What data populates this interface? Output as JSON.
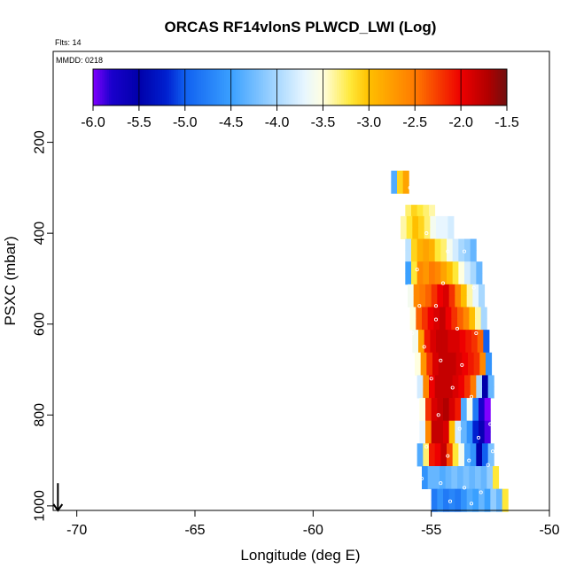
{
  "chart_data": {
    "type": "heatmap",
    "title": "ORCAS RF14vlonS PLWCD_LWI (Log)",
    "flights_label": "Flts: 14",
    "date_label": "MMDD: 0218",
    "xlabel": "Longitude (deg E)",
    "ylabel": "PSXC (mbar)",
    "xlim": [
      -71.0,
      -50.0
    ],
    "ylim": [
      1010,
      0
    ],
    "x_ticks": [
      -70,
      -65,
      -60,
      -55,
      -50
    ],
    "x_tick_labels": [
      "-70",
      "-65",
      "-60",
      "-55",
      "-50"
    ],
    "y_ticks": [
      200,
      400,
      600,
      800,
      1000
    ],
    "y_tick_labels": [
      "200",
      "400",
      "600",
      "800",
      "1000"
    ],
    "colorbar": {
      "range": [
        -6.0,
        -1.5
      ],
      "ticks": [
        -6.0,
        -5.5,
        -5.0,
        -4.5,
        -4.0,
        -3.5,
        -3.0,
        -2.5,
        -2.0,
        -1.5
      ],
      "tick_labels": [
        "-6.0",
        "-5.5",
        "-5.0",
        "-4.5",
        "-4.0",
        "-3.5",
        "-3.0",
        "-2.5",
        "-2.0",
        "-1.5"
      ],
      "stops": [
        {
          "v": -6.0,
          "color": "#8000ff"
        },
        {
          "v": -5.8,
          "color": "#1a00cc"
        },
        {
          "v": -5.5,
          "color": "#0000aa"
        },
        {
          "v": -5.2,
          "color": "#0020d0"
        },
        {
          "v": -5.0,
          "color": "#1060f0"
        },
        {
          "v": -4.5,
          "color": "#3aa0ff"
        },
        {
          "v": -4.0,
          "color": "#a8d8ff"
        },
        {
          "v": -3.7,
          "color": "#e8f6ff"
        },
        {
          "v": -3.5,
          "color": "#ffffe0"
        },
        {
          "v": -3.2,
          "color": "#ffe838"
        },
        {
          "v": -3.0,
          "color": "#ffbf00"
        },
        {
          "v": -2.5,
          "color": "#ff7a00"
        },
        {
          "v": -2.0,
          "color": "#ee0000"
        },
        {
          "v": -1.7,
          "color": "#b00000"
        },
        {
          "v": -1.5,
          "color": "#701010"
        }
      ]
    },
    "cell_width_deg": 0.25,
    "cell_height_mbar": 25,
    "profiles": [
      {
        "p": 275,
        "x0": -56.7,
        "v": [
          -4.4,
          -3.1,
          -2.8
        ]
      },
      {
        "p": 300,
        "x0": -56.7,
        "v": [
          -4.4,
          -3.1,
          -2.8
        ]
      },
      {
        "p": 350,
        "x0": -56.1,
        "v": [
          -3.3,
          -3.1,
          -3.2,
          -3.3,
          -3.4
        ]
      },
      {
        "p": 375,
        "x0": -56.3,
        "v": [
          -3.4,
          -3.2,
          -3.0,
          -3.1,
          -3.3,
          -3.6,
          -3.7,
          -3.7,
          -3.8
        ]
      },
      {
        "p": 400,
        "x0": -56.3,
        "v": [
          -3.4,
          -3.2,
          -3.0,
          -3.1,
          -3.3,
          -3.6,
          -3.7,
          -3.7,
          -3.8
        ]
      },
      {
        "p": 425,
        "x0": -56.1,
        "v": [
          -3.9,
          -3.1,
          -2.9,
          -2.8,
          -2.9,
          -3.2,
          -3.3,
          -3.6,
          -3.8,
          -4.0,
          -4.1,
          -4.3
        ]
      },
      {
        "p": 450,
        "x0": -56.1,
        "v": [
          -3.9,
          -3.1,
          -2.9,
          -2.8,
          -2.9,
          -3.2,
          -3.3,
          -3.6,
          -3.8,
          -4.0,
          -4.1,
          -4.3
        ]
      },
      {
        "p": 475,
        "x0": -56.1,
        "v": [
          -4.5,
          -3.2,
          -2.6,
          -2.7,
          -2.5,
          -2.6,
          -2.8,
          -3.0,
          -3.2,
          -3.5,
          -3.8,
          -4.0,
          -4.3
        ]
      },
      {
        "p": 500,
        "x0": -56.1,
        "v": [
          -4.5,
          -3.2,
          -2.6,
          -2.7,
          -2.5,
          -2.6,
          -2.8,
          -3.0,
          -3.2,
          -3.5,
          -3.8,
          -4.0,
          -4.3
        ]
      },
      {
        "p": 525,
        "x0": -56.0,
        "v": [
          -3.6,
          -2.6,
          -2.5,
          -2.4,
          -2.2,
          -2.0,
          -1.9,
          -2.2,
          -2.6,
          -3.0,
          -3.4,
          -3.7,
          -4.0
        ]
      },
      {
        "p": 550,
        "x0": -56.0,
        "v": [
          -3.6,
          -2.6,
          -2.5,
          -2.4,
          -2.2,
          -2.0,
          -1.9,
          -2.2,
          -2.6,
          -3.0,
          -3.4,
          -3.7,
          -4.0
        ]
      },
      {
        "p": 575,
        "x0": -55.9,
        "v": [
          -3.5,
          -2.4,
          -2.2,
          -2.0,
          -1.9,
          -1.8,
          -2.0,
          -2.2,
          -2.4,
          -2.6,
          -3.0,
          -3.4,
          -4.0
        ]
      },
      {
        "p": 600,
        "x0": -55.9,
        "v": [
          -3.5,
          -2.4,
          -2.2,
          -2.0,
          -1.9,
          -1.8,
          -2.0,
          -2.2,
          -2.4,
          -2.6,
          -3.0,
          -3.4,
          -4.0
        ]
      },
      {
        "p": 625,
        "x0": -55.8,
        "v": [
          -3.6,
          -2.8,
          -2.1,
          -1.9,
          -1.8,
          -1.8,
          -1.9,
          -1.9,
          -2.0,
          -2.1,
          -2.2,
          -2.4,
          -5.0
        ]
      },
      {
        "p": 650,
        "x0": -55.8,
        "v": [
          -3.6,
          -2.8,
          -2.1,
          -1.9,
          -1.8,
          -1.8,
          -1.9,
          -1.9,
          -2.0,
          -2.1,
          -2.2,
          -2.4,
          -5.0
        ]
      },
      {
        "p": 675,
        "x0": -55.7,
        "v": [
          -3.5,
          -2.7,
          -2.2,
          -1.9,
          -1.8,
          -1.8,
          -1.8,
          -1.9,
          -2.0,
          -2.1,
          -2.2,
          -2.6,
          -4.6
        ]
      },
      {
        "p": 700,
        "x0": -55.7,
        "v": [
          -3.5,
          -2.7,
          -2.2,
          -1.9,
          -1.8,
          -1.8,
          -1.8,
          -1.9,
          -2.0,
          -2.1,
          -2.2,
          -2.6,
          -4.6
        ]
      },
      {
        "p": 725,
        "x0": -55.6,
        "v": [
          -3.8,
          -2.6,
          -2.0,
          -1.8,
          -1.8,
          -1.8,
          -1.9,
          -2.0,
          -2.2,
          -2.5,
          -4.0,
          -5.5,
          -4.3
        ]
      },
      {
        "p": 750,
        "x0": -55.6,
        "v": [
          -3.8,
          -2.6,
          -2.0,
          -1.8,
          -1.8,
          -1.8,
          -1.9,
          -2.0,
          -2.2,
          -2.5,
          -4.0,
          -5.5,
          -4.3
        ]
      },
      {
        "p": 775,
        "x0": -55.5,
        "v": [
          -3.5,
          -2.2,
          -1.9,
          -1.8,
          -1.7,
          -1.9,
          -2.1,
          -4.4,
          -3.6,
          -4.8,
          -5.8,
          -6.0
        ]
      },
      {
        "p": 800,
        "x0": -55.5,
        "v": [
          -3.5,
          -2.2,
          -1.9,
          -1.8,
          -1.7,
          -1.9,
          -2.1,
          -4.4,
          -3.6,
          -4.8,
          -5.8,
          -6.0
        ]
      },
      {
        "p": 825,
        "x0": -55.5,
        "v": [
          -3.7,
          -2.6,
          -1.8,
          -1.8,
          -1.9,
          -3.0,
          -3.8,
          -4.3,
          -4.6,
          -5.2,
          -5.6,
          -5.9
        ]
      },
      {
        "p": 850,
        "x0": -55.5,
        "v": [
          -3.7,
          -2.6,
          -1.8,
          -1.8,
          -1.9,
          -3.0,
          -3.8,
          -4.3,
          -4.6,
          -5.2,
          -5.6,
          -5.9
        ]
      },
      {
        "p": 875,
        "x0": -55.6,
        "v": [
          -4.4,
          -3.3,
          -2.1,
          -2.0,
          -1.8,
          -2.3,
          -3.2,
          -3.6,
          -4.4,
          -4.6,
          -5.5,
          -5.0,
          -4.2
        ]
      },
      {
        "p": 900,
        "x0": -55.6,
        "v": [
          -4.4,
          -3.3,
          -2.1,
          -2.0,
          -1.8,
          -2.3,
          -3.2,
          -3.6,
          -4.4,
          -4.6,
          -5.5,
          -5.0,
          -4.2
        ]
      },
      {
        "p": 925,
        "x0": -55.4,
        "v": [
          -4.6,
          -4.3,
          -4.3,
          -4.4,
          -4.3,
          -4.2,
          -4.3,
          -4.2,
          -4.3,
          -4.2,
          -4.3,
          -4.1,
          -3.2
        ]
      },
      {
        "p": 950,
        "x0": -55.4,
        "v": [
          -4.6,
          -4.3,
          -4.3,
          -4.4,
          -4.3,
          -4.2,
          -4.3,
          -4.2,
          -4.3,
          -4.2,
          -4.3,
          -4.1,
          -3.2
        ]
      },
      {
        "p": 975,
        "x0": -55.0,
        "v": [
          -4.8,
          -4.6,
          -4.8,
          -4.7,
          -4.8,
          -4.6,
          -4.4,
          -4.5,
          -4.3,
          -4.5,
          -4.1,
          -4.3,
          -3.2
        ]
      },
      {
        "p": 1000,
        "x0": -55.0,
        "v": [
          -4.8,
          -4.6,
          -4.8,
          -4.7,
          -4.8,
          -4.6,
          -4.4,
          -4.5,
          -4.3,
          -4.5,
          -4.1,
          -4.3,
          -3.2
        ]
      }
    ],
    "markers": [
      [
        -55.9,
        300
      ],
      [
        -55.2,
        400
      ],
      [
        -54.3,
        440
      ],
      [
        -53.6,
        440
      ],
      [
        -55.6,
        480
      ],
      [
        -54.5,
        510
      ],
      [
        -55.5,
        560
      ],
      [
        -54.8,
        590
      ],
      [
        -53.9,
        610
      ],
      [
        -53.1,
        620
      ],
      [
        -55.3,
        650
      ],
      [
        -54.6,
        680
      ],
      [
        -53.7,
        690
      ],
      [
        -55.0,
        720
      ],
      [
        -54.1,
        740
      ],
      [
        -53.3,
        760
      ],
      [
        -55.6,
        780
      ],
      [
        -54.7,
        800
      ],
      [
        -53.8,
        830
      ],
      [
        -53.0,
        850
      ],
      [
        -55.2,
        870
      ],
      [
        -54.3,
        890
      ],
      [
        -53.4,
        900
      ],
      [
        -52.6,
        910
      ],
      [
        -55.4,
        940
      ],
      [
        -54.6,
        950
      ],
      [
        -53.6,
        960
      ],
      [
        -52.9,
        970
      ],
      [
        -55.1,
        985
      ],
      [
        -54.2,
        990
      ],
      [
        -53.3,
        995
      ],
      [
        -54.8,
        560
      ],
      [
        -55.8,
        620
      ],
      [
        -53.2,
        520
      ],
      [
        -52.5,
        820
      ],
      [
        -52.4,
        880
      ]
    ],
    "arrow": {
      "x": -70.8,
      "p0": 950,
      "p1": 1010
    }
  }
}
